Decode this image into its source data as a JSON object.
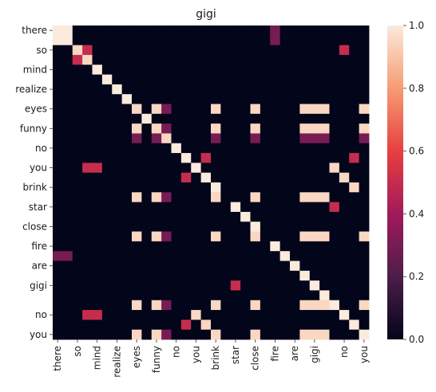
{
  "chart_data": {
    "type": "heatmap",
    "title": "gigi",
    "xlabel": "",
    "ylabel": "",
    "tokens": [
      "there",
      "",
      "so",
      "",
      "mind",
      "",
      "realize",
      "",
      "eyes",
      "",
      "funny",
      "",
      "no",
      "",
      "you",
      "",
      "brink",
      "",
      "star",
      "",
      "close",
      "",
      "fire",
      "",
      "are",
      "",
      "gigi",
      "",
      "",
      "no",
      "",
      "you",
      ""
    ],
    "x_tick_labels": [
      "there",
      "so",
      "mind",
      "realize",
      "eyes",
      "funny",
      "no",
      "you",
      "brink",
      "star",
      "close",
      "fire",
      "are",
      "gigi",
      "no",
      "you"
    ],
    "y_tick_labels": [
      "there",
      "so",
      "mind",
      "realize",
      "eyes",
      "funny",
      "no",
      "you",
      "brink",
      "star",
      "close",
      "fire",
      "are",
      "gigi",
      "no",
      "you"
    ],
    "colorbar": {
      "min": 0.0,
      "max": 1.0,
      "ticks": [
        "0.0",
        "0.2",
        "0.4",
        "0.6",
        "0.8",
        "1.0"
      ]
    },
    "values": [
      [
        1,
        1,
        0,
        0,
        0,
        0,
        0,
        0,
        0,
        0,
        0,
        0,
        0,
        0,
        0,
        0,
        0,
        0,
        0,
        0,
        0,
        0,
        0.3,
        0,
        0,
        0,
        0,
        0,
        0,
        0,
        0,
        0
      ],
      [
        1,
        1,
        0,
        0,
        0,
        0,
        0,
        0,
        0,
        0,
        0,
        0,
        0,
        0,
        0,
        0,
        0,
        0,
        0,
        0,
        0,
        0,
        0.3,
        0,
        0,
        0,
        0,
        0,
        0,
        0,
        0,
        0
      ],
      [
        0,
        0,
        0.95,
        0.5,
        0,
        0,
        0,
        0,
        0,
        0,
        0,
        0,
        0,
        0,
        0,
        0,
        0,
        0,
        0,
        0,
        0,
        0,
        0,
        0,
        0,
        0,
        0,
        0,
        0,
        0.5,
        0,
        0
      ],
      [
        0,
        0,
        0.5,
        0.95,
        0,
        0,
        0,
        0,
        0,
        0,
        0,
        0,
        0,
        0,
        0,
        0,
        0,
        0,
        0,
        0,
        0,
        0,
        0,
        0,
        0,
        0,
        0,
        0,
        0,
        0,
        0,
        0
      ],
      [
        0,
        0,
        0,
        0,
        1,
        0,
        0,
        0,
        0,
        0,
        0,
        0,
        0,
        0,
        0,
        0,
        0,
        0,
        0,
        0,
        0,
        0,
        0,
        0,
        0,
        0,
        0,
        0,
        0,
        0,
        0,
        0
      ],
      [
        0,
        0,
        0,
        0,
        0,
        1,
        0,
        0,
        0,
        0,
        0,
        0,
        0,
        0,
        0,
        0,
        0,
        0,
        0,
        0,
        0,
        0,
        0,
        0,
        0,
        0,
        0,
        0,
        0,
        0,
        0,
        0
      ],
      [
        0,
        0,
        0,
        0,
        0,
        0,
        1,
        0,
        0,
        0,
        0,
        0,
        0,
        0,
        0,
        0,
        0,
        0,
        0,
        0,
        0,
        0,
        0,
        0,
        0,
        0,
        0,
        0,
        0,
        0,
        0,
        0
      ],
      [
        0,
        0,
        0,
        0,
        0,
        0,
        0,
        1,
        0,
        0,
        0,
        0,
        0,
        0,
        0,
        0,
        0,
        0,
        0,
        0,
        0,
        0,
        0,
        0,
        0,
        0,
        0,
        0,
        0,
        0,
        0,
        0
      ],
      [
        0,
        0,
        0,
        0,
        0,
        0,
        0,
        0,
        0.95,
        0,
        0.95,
        0.3,
        0,
        0,
        0,
        0,
        0.95,
        0,
        0,
        0,
        0.95,
        0,
        0,
        0,
        0,
        0.95,
        0.95,
        0.95,
        0,
        0,
        0,
        0.95
      ],
      [
        0,
        0,
        0,
        0,
        0,
        0,
        0,
        0,
        0,
        1,
        0,
        0,
        0,
        0,
        0,
        0,
        0,
        0,
        0,
        0,
        0,
        0,
        0,
        0,
        0,
        0,
        0,
        0,
        0,
        0,
        0,
        0
      ],
      [
        0,
        0,
        0,
        0,
        0,
        0,
        0,
        0,
        0.95,
        0,
        0.95,
        0.3,
        0,
        0,
        0,
        0,
        0.95,
        0,
        0,
        0,
        0.95,
        0,
        0,
        0,
        0,
        0.95,
        0.95,
        0.95,
        0,
        0,
        0,
        0.95
      ],
      [
        0,
        0,
        0,
        0,
        0,
        0,
        0,
        0,
        0.3,
        0,
        0.3,
        0.95,
        0,
        0,
        0,
        0,
        0.3,
        0,
        0,
        0,
        0.3,
        0,
        0,
        0,
        0,
        0.3,
        0.3,
        0.3,
        0,
        0,
        0,
        0.3
      ],
      [
        0,
        0,
        0,
        0,
        0,
        0,
        0,
        0,
        0,
        0,
        0,
        0,
        1,
        0,
        0,
        0,
        0,
        0,
        0,
        0,
        0,
        0,
        0,
        0,
        0,
        0,
        0,
        0,
        0,
        0,
        0,
        0
      ],
      [
        0,
        0,
        0,
        0,
        0,
        0,
        0,
        0,
        0,
        0,
        0,
        0,
        0,
        1,
        0,
        0.5,
        0,
        0,
        0,
        0,
        0,
        0,
        0,
        0,
        0,
        0,
        0,
        0,
        0,
        0,
        0.5,
        0
      ],
      [
        0,
        0,
        0,
        0.5,
        0.5,
        0,
        0,
        0,
        0,
        0,
        0,
        0,
        0,
        0,
        1,
        0,
        0,
        0,
        0,
        0,
        0,
        0,
        0,
        0,
        0,
        0,
        0,
        0,
        0.95,
        0,
        0,
        0
      ],
      [
        0,
        0,
        0,
        0,
        0,
        0,
        0,
        0,
        0,
        0,
        0,
        0,
        0,
        0.5,
        0,
        1,
        0,
        0,
        0,
        0,
        0,
        0,
        0,
        0,
        0,
        0,
        0,
        0,
        0,
        0.95,
        0,
        0
      ],
      [
        0,
        0,
        0,
        0,
        0,
        0,
        0,
        0,
        0,
        0,
        0,
        0,
        0,
        0,
        0,
        0,
        1,
        0,
        0,
        0,
        0,
        0,
        0,
        0,
        0,
        0,
        0,
        0,
        0,
        0,
        0.95,
        0
      ],
      [
        0,
        0,
        0,
        0,
        0,
        0,
        0,
        0,
        0.95,
        0,
        0.95,
        0.3,
        0,
        0,
        0,
        0,
        0.95,
        0,
        0,
        0,
        0.95,
        0,
        0,
        0,
        0,
        0.95,
        0.95,
        0.95,
        0,
        0,
        0,
        0
      ],
      [
        0,
        0,
        0,
        0,
        0,
        0,
        0,
        0,
        0,
        0,
        0,
        0,
        0,
        0,
        0,
        0,
        0,
        0,
        1,
        0,
        0,
        0,
        0,
        0,
        0,
        0,
        0,
        0,
        0.5,
        0,
        0,
        0
      ],
      [
        0,
        0,
        0,
        0,
        0,
        0,
        0,
        0,
        0,
        0,
        0,
        0,
        0,
        0,
        0,
        0,
        0,
        0,
        0,
        1,
        0,
        0,
        0,
        0,
        0,
        0,
        0,
        0,
        0,
        0,
        0,
        0
      ],
      [
        0,
        0,
        0,
        0,
        0,
        0,
        0,
        0,
        0,
        0,
        0,
        0,
        0,
        0,
        0,
        0,
        0,
        0,
        0,
        0,
        1,
        0,
        0,
        0,
        0,
        0,
        0,
        0,
        0,
        0,
        0,
        0
      ],
      [
        0,
        0,
        0,
        0,
        0,
        0,
        0,
        0,
        0.95,
        0,
        0.95,
        0.3,
        0,
        0,
        0,
        0,
        0.95,
        0,
        0,
        0,
        0.95,
        0,
        0,
        0,
        0,
        0.95,
        0.95,
        0.95,
        0,
        0,
        0,
        0.95
      ],
      [
        0,
        0,
        0,
        0,
        0,
        0,
        0,
        0,
        0,
        0,
        0,
        0,
        0,
        0,
        0,
        0,
        0,
        0,
        0,
        0,
        0,
        0,
        1,
        0,
        0,
        0,
        0,
        0,
        0,
        0,
        0,
        0
      ],
      [
        0.3,
        0.3,
        0,
        0,
        0,
        0,
        0,
        0,
        0,
        0,
        0,
        0,
        0,
        0,
        0,
        0,
        0,
        0,
        0,
        0,
        0,
        0,
        0,
        1,
        0,
        0,
        0,
        0,
        0,
        0,
        0,
        0
      ],
      [
        0,
        0,
        0,
        0,
        0,
        0,
        0,
        0,
        0,
        0,
        0,
        0,
        0,
        0,
        0,
        0,
        0,
        0,
        0,
        0,
        0,
        0,
        0,
        0,
        1,
        0,
        0,
        0,
        0,
        0,
        0,
        0
      ],
      [
        0,
        0,
        0,
        0,
        0,
        0,
        0,
        0,
        0,
        0,
        0,
        0,
        0,
        0,
        0,
        0,
        0,
        0,
        0,
        0,
        0,
        0,
        0,
        0,
        0,
        1,
        0,
        0,
        0,
        0,
        0,
        0
      ],
      [
        0,
        0,
        0,
        0,
        0,
        0,
        0,
        0,
        0,
        0,
        0,
        0,
        0,
        0,
        0,
        0,
        0,
        0,
        0.5,
        0,
        0,
        0,
        0,
        0,
        0,
        0,
        1,
        0,
        0,
        0,
        0,
        0
      ],
      [
        0,
        0,
        0,
        0,
        0,
        0,
        0,
        0,
        0,
        0,
        0,
        0,
        0,
        0,
        0,
        0,
        0,
        0,
        0,
        0,
        0,
        0,
        0,
        0,
        0,
        0,
        0,
        1,
        0,
        0,
        0,
        0
      ],
      [
        0,
        0,
        0,
        0,
        0,
        0,
        0,
        0,
        0.95,
        0,
        0.95,
        0.3,
        0,
        0,
        0,
        0,
        0.95,
        0,
        0,
        0,
        0.95,
        0,
        0,
        0,
        0,
        0.95,
        0.95,
        0.95,
        1,
        0,
        0,
        0.95
      ],
      [
        0,
        0,
        0,
        0.5,
        0.5,
        0,
        0,
        0,
        0,
        0,
        0,
        0,
        0,
        0,
        0.95,
        0,
        0,
        0,
        0,
        0,
        0,
        0,
        0,
        0,
        0,
        0,
        0,
        0,
        0,
        1,
        0,
        0
      ],
      [
        0,
        0,
        0,
        0,
        0,
        0,
        0,
        0,
        0,
        0,
        0,
        0,
        0,
        0.5,
        0,
        0.95,
        0,
        0,
        0,
        0,
        0,
        0,
        0,
        0,
        0,
        0,
        0,
        0,
        0,
        0,
        1,
        0
      ],
      [
        0,
        0,
        0,
        0,
        0,
        0,
        0,
        0,
        0.95,
        0,
        0.95,
        0.3,
        0,
        0,
        0,
        0,
        0.95,
        0,
        0,
        0,
        0.95,
        0,
        0,
        0,
        0,
        0.95,
        0.95,
        0.95,
        0,
        0,
        0,
        1
      ]
    ]
  }
}
